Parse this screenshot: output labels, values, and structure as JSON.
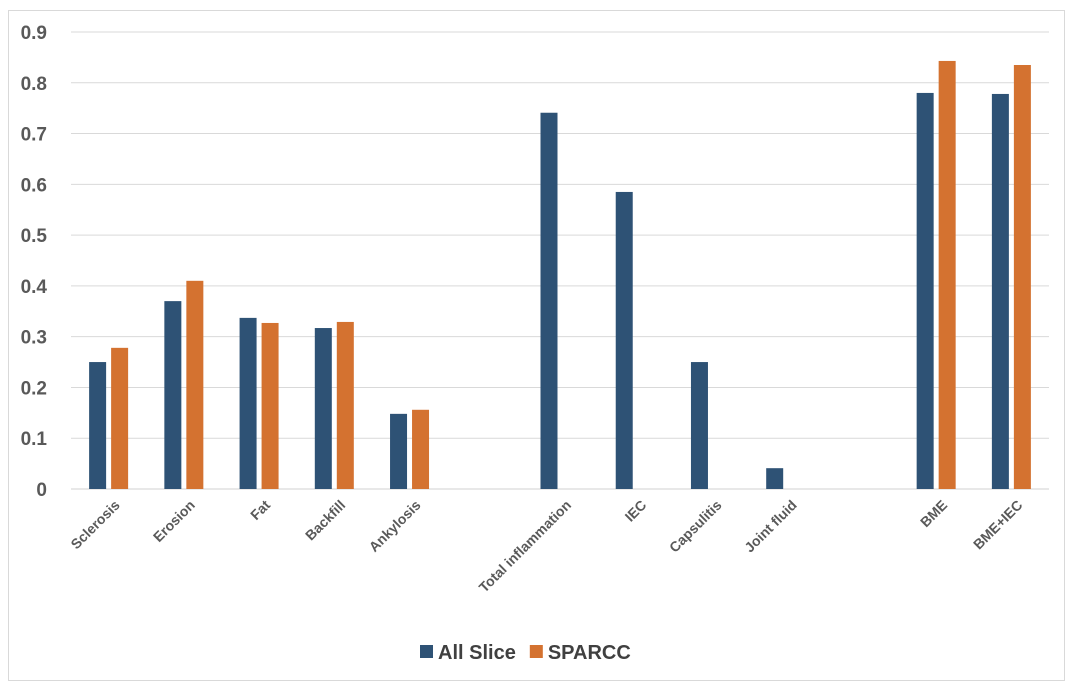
{
  "chart_data": {
    "type": "bar",
    "title": "",
    "xlabel": "",
    "ylabel": "",
    "ylim": [
      0,
      0.9
    ],
    "yticks": [
      "0",
      "0.1",
      "0.2",
      "0.3",
      "0.4",
      "0.5",
      "0.6",
      "0.7",
      "0.8",
      "0.9"
    ],
    "grid": true,
    "legend_position": "bottom",
    "categories": [
      "Sclerosis",
      "Erosion",
      "Fat",
      "Backfill",
      "Ankylosis",
      "",
      "Total inflammation",
      "IEC",
      "Capsulitis",
      "Joint fluid",
      "",
      "BME",
      "BME+IEC"
    ],
    "series": [
      {
        "name": "All Slice",
        "color": "#2e5275",
        "values": [
          0.25,
          0.37,
          0.337,
          0.317,
          0.148,
          null,
          0.741,
          0.585,
          0.25,
          0.041,
          null,
          0.78,
          0.778
        ]
      },
      {
        "name": "SPARCC",
        "color": "#d47230",
        "values": [
          0.278,
          0.41,
          0.327,
          0.329,
          0.156,
          null,
          null,
          null,
          null,
          null,
          null,
          0.843,
          0.835
        ]
      }
    ]
  }
}
